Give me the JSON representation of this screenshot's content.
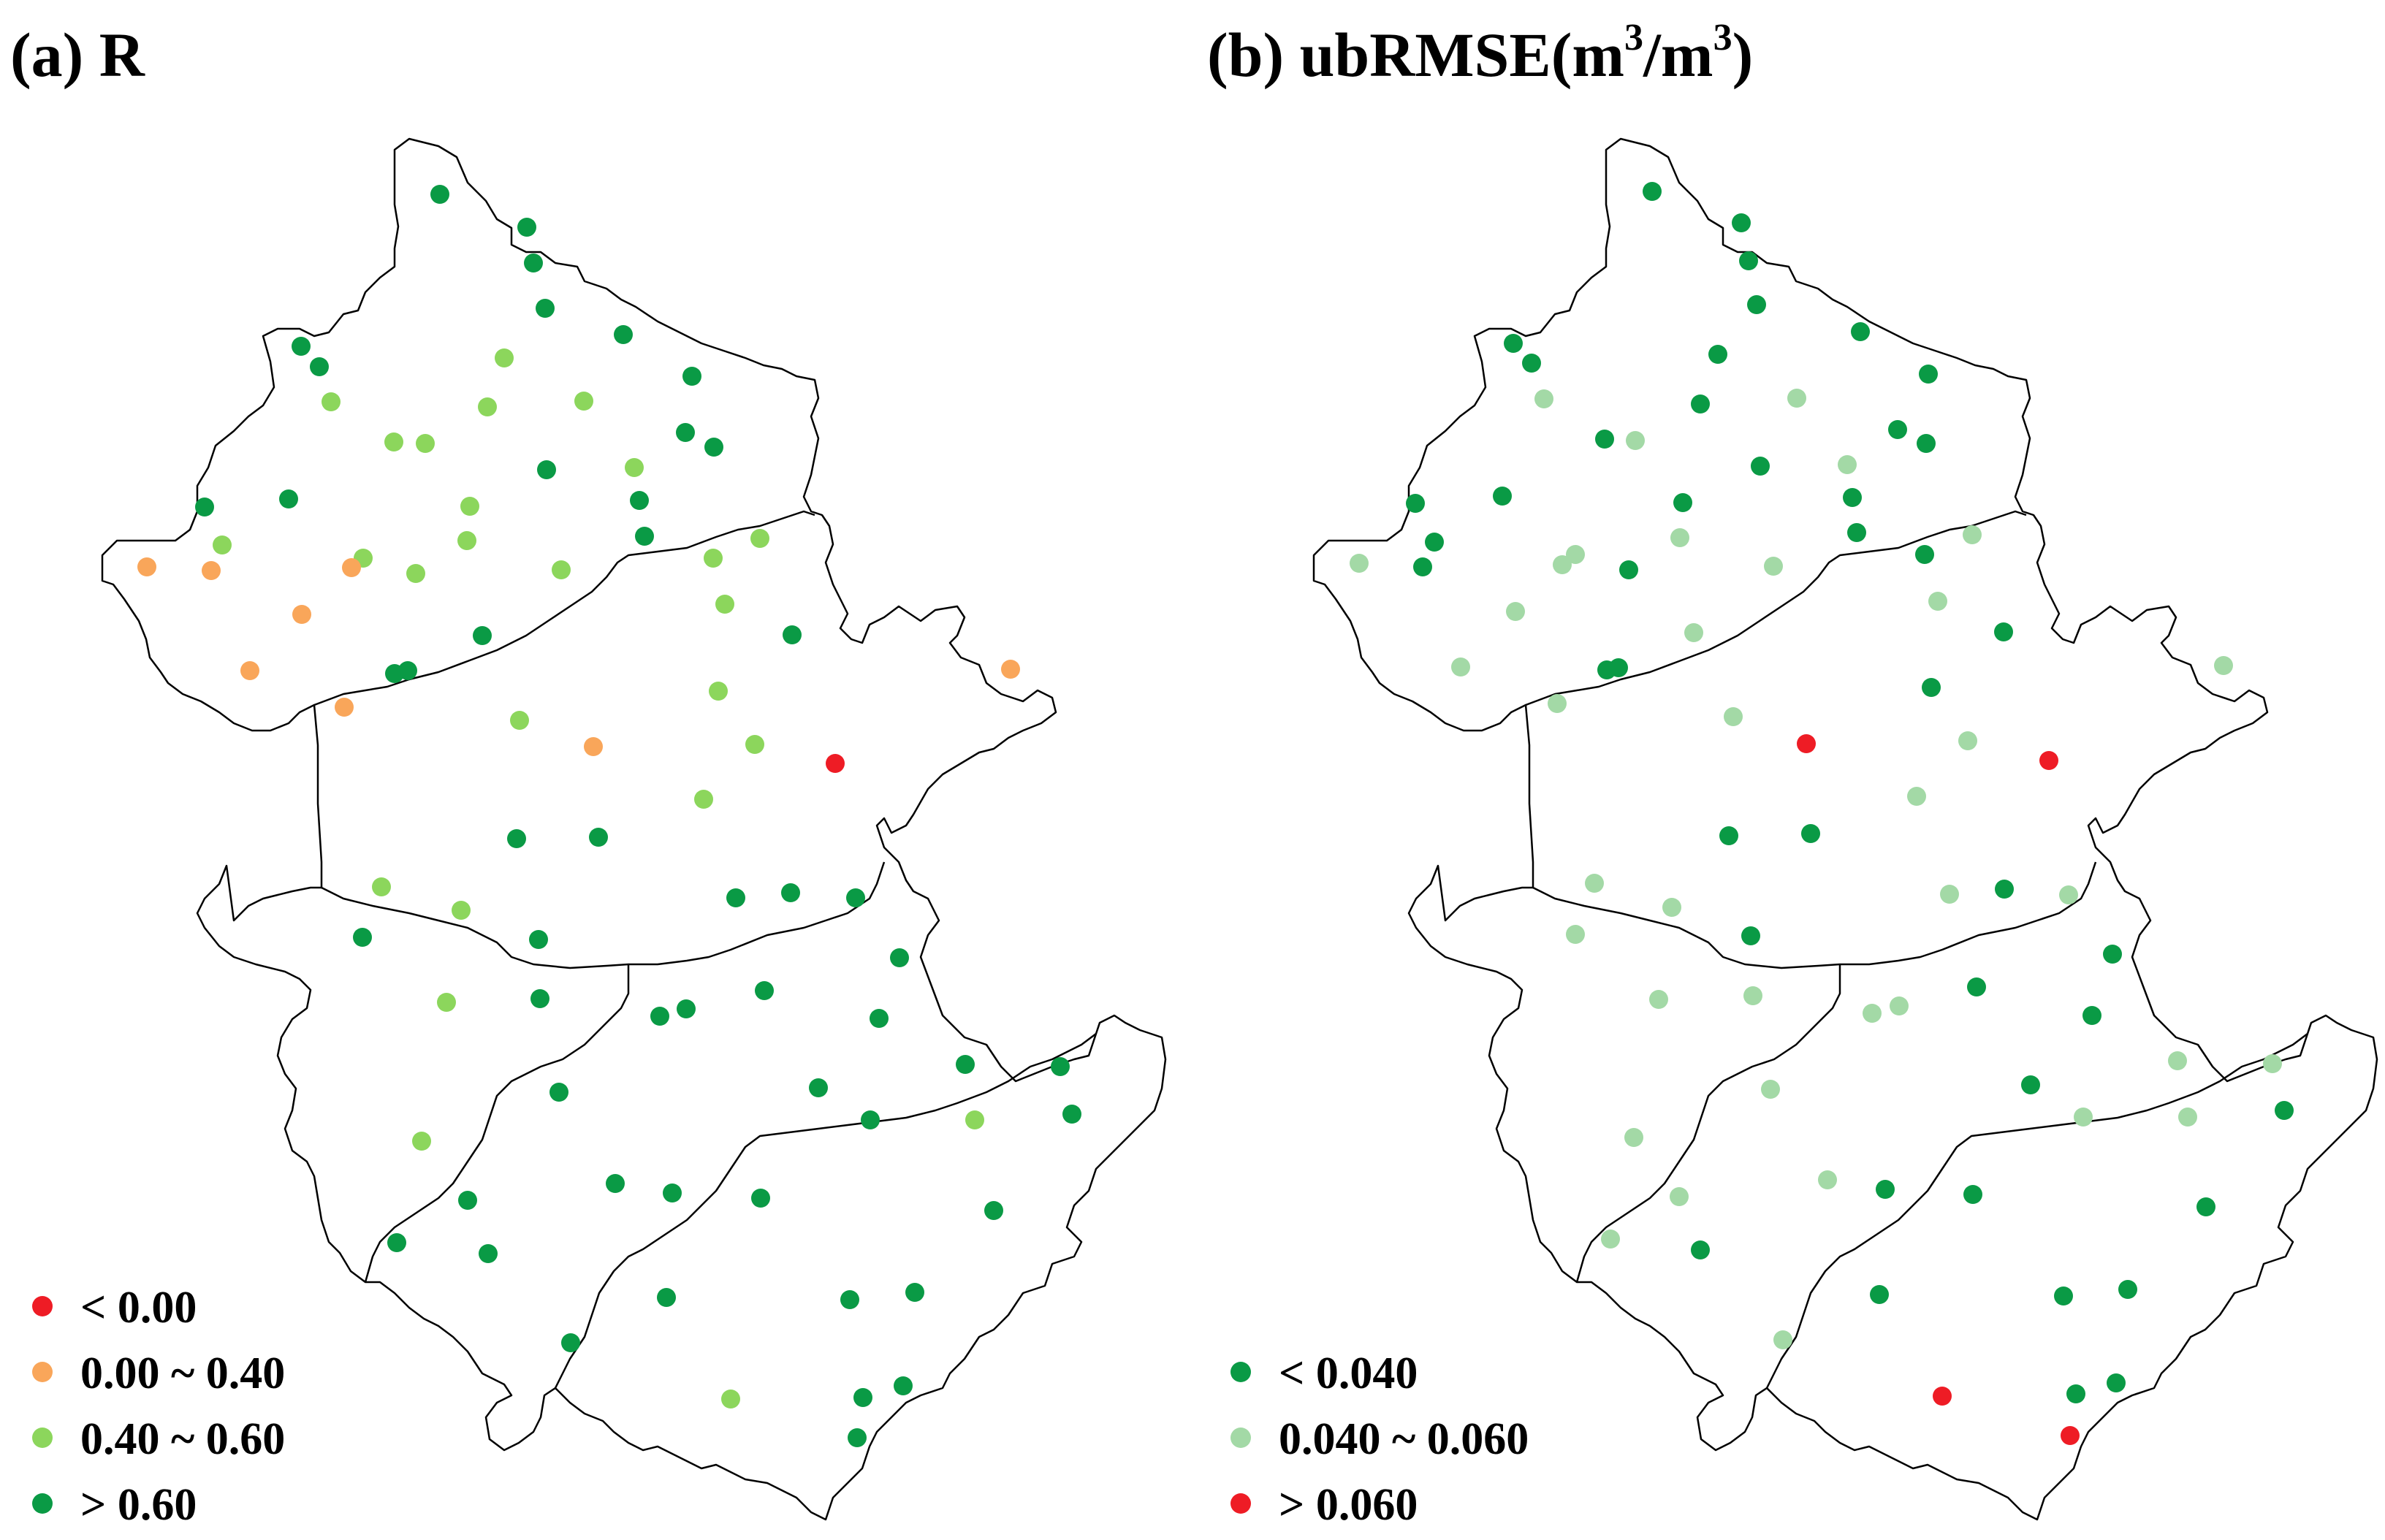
{
  "panels": [
    {
      "id": "a",
      "title": "(a) R",
      "legend": [
        {
          "label": "< 0.00",
          "color": "#ee1c25"
        },
        {
          "label": "0.00 ~ 0.40",
          "color": "#f9a65a"
        },
        {
          "label": "0.40 ~ 0.60",
          "color": "#8cd65c"
        },
        {
          "label": "> 0.60",
          "color": "#0a9a45"
        }
      ]
    },
    {
      "id": "b",
      "title_main": "(b) ubRMSE(m",
      "title_sup1": "3",
      "title_mid": "/m",
      "title_sup2": "3",
      "title_end": ")",
      "legend": [
        {
          "label": "< 0.040",
          "color": "#0a9a45"
        },
        {
          "label": "0.040 ~ 0.060",
          "color": "#a3d9a6"
        },
        {
          "label": "> 0.060",
          "color": "#ee1c25"
        }
      ]
    }
  ],
  "colors": {
    "red": "#ee1c25",
    "orange": "#f9a65a",
    "light_green": "#8cd65c",
    "dark_green": "#0a9a45",
    "pale_green": "#a3d9a6",
    "boundary": "#000000"
  }
}
